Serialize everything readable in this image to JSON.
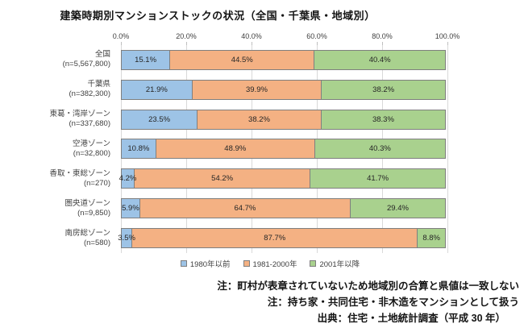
{
  "title": "建築時期別マンションストックの状況（全国・千葉県・地域別）",
  "chart_data": {
    "type": "bar",
    "orientation": "horizontal-stacked",
    "title": "建築時期別マンションストックの状況（全国・千葉県・地域別）",
    "x_ticks": [
      "0.0%",
      "20.0%",
      "40.0%",
      "60.0%",
      "80.0%",
      "100.0%"
    ],
    "xlim": [
      0,
      100
    ],
    "value_suffix": "%",
    "grid": true,
    "legend_position": "bottom",
    "categories": [
      {
        "name": "全国",
        "n": "(n=5,567,800)"
      },
      {
        "name": "千葉県",
        "n": "(n=382,300)"
      },
      {
        "name": "東葛・湾岸ゾーン",
        "n": "(n=337,680)"
      },
      {
        "name": "空港ゾーン",
        "n": "(n=32,800)"
      },
      {
        "name": "香取・東総ゾーン",
        "n": "(n=270)"
      },
      {
        "name": "圏央道ゾーン",
        "n": "(n=9,850)"
      },
      {
        "name": "南房総ゾーン",
        "n": "(n=580)"
      }
    ],
    "series": [
      {
        "name": "1980年以前",
        "color": "#9DC3E6",
        "values": [
          15.1,
          21.9,
          23.5,
          10.8,
          4.2,
          5.9,
          3.5
        ]
      },
      {
        "name": "1981-2000年",
        "color": "#F4B183",
        "values": [
          44.5,
          39.9,
          38.2,
          48.9,
          54.2,
          64.7,
          87.7
        ]
      },
      {
        "name": "2001年以降",
        "color": "#A9D18E",
        "values": [
          40.4,
          38.2,
          38.3,
          40.3,
          41.7,
          29.4,
          8.8
        ]
      }
    ]
  },
  "colors": {
    "series_blue": "#9DC3E6",
    "series_orange": "#F4B183",
    "series_green": "#A9D18E",
    "bar_border": "#7F7F7F",
    "gridline": "#D9D9D9"
  },
  "notes": [
    "注：町村が表章されていないため地域別の合算と県値は一致しない",
    "注：持ち家・共同住宅・非木造をマンションとして扱う",
    "出典：住宅・土地統計調査（平成 30 年）"
  ]
}
